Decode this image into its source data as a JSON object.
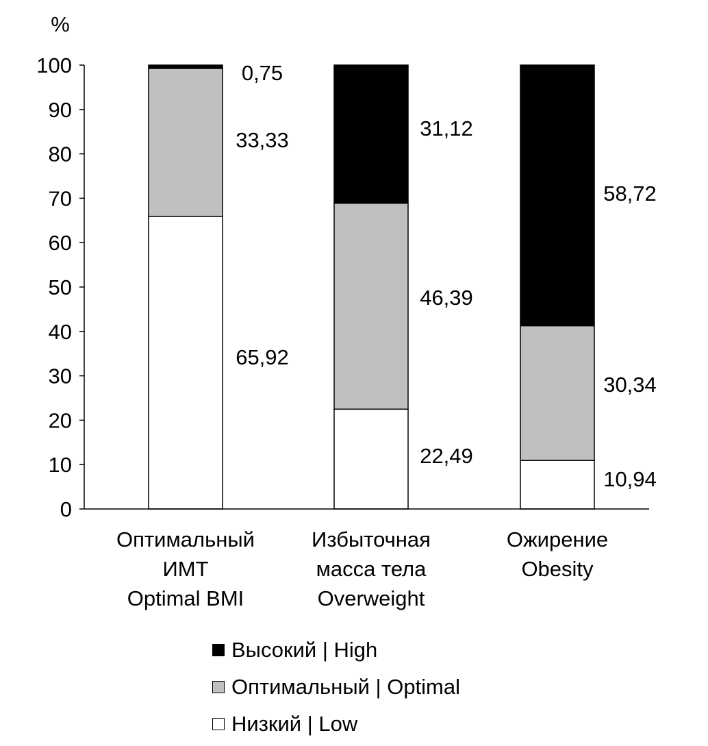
{
  "chart_data": {
    "type": "bar",
    "stacked": true,
    "ylabel": "%",
    "ylim": [
      0,
      100
    ],
    "yticks": [
      0,
      10,
      20,
      30,
      40,
      50,
      60,
      70,
      80,
      90,
      100
    ],
    "grid": false,
    "legend_position": "bottom",
    "categories": [
      [
        "Оптимальный",
        "ИМТ",
        "Optimal BMI"
      ],
      [
        "Избыточная",
        "масса тела",
        "Overweight"
      ],
      [
        "Ожирение",
        "Obesity"
      ]
    ],
    "series": [
      {
        "name": "Низкий | Low",
        "color": "#ffffff",
        "values": [
          65.92,
          22.49,
          10.94
        ],
        "labels": [
          "65,92",
          "22,49",
          "10,94"
        ]
      },
      {
        "name": "Оптимальный | Optimal",
        "color": "#c0c0c0",
        "values": [
          33.33,
          46.39,
          30.34
        ],
        "labels": [
          "33,33",
          "46,39",
          "30,34"
        ]
      },
      {
        "name": "Высокий | High",
        "color": "#000000",
        "values": [
          0.75,
          31.12,
          58.72
        ],
        "labels": [
          "0,75",
          "31,12",
          "58,72"
        ]
      }
    ],
    "legend_order": [
      2,
      1,
      0
    ]
  }
}
